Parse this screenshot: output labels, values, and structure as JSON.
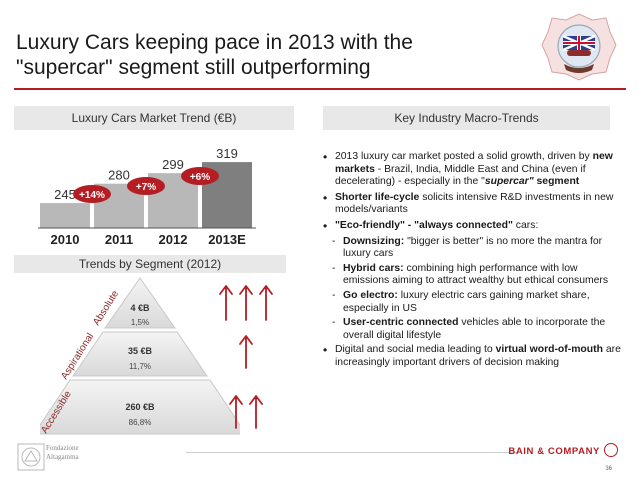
{
  "title_line1": "Luxury Cars keeping pace in 2013 with the",
  "title_line2": "\"supercar\" segment still outperforming",
  "left_header": "Luxury Cars Market Trend (€B)",
  "right_header": "Key Industry Macro-Trends",
  "segment_header": "Trends by Segment (2012)",
  "chart_data": {
    "type": "bar",
    "title": "Luxury Cars Market Trend (€B)",
    "categories": [
      "2010",
      "2011",
      "2012",
      "2013E"
    ],
    "values": [
      245,
      280,
      299,
      319
    ],
    "value_labels": [
      "245",
      "280",
      "299",
      "319"
    ],
    "growth_labels": [
      "+14%",
      "+7%",
      "+6%"
    ],
    "colors": [
      "#b8b8b8",
      "#b8b8b8",
      "#b8b8b8",
      "#7f7f7f"
    ],
    "accent": "#b41e23",
    "ylim": [
      200,
      330
    ]
  },
  "pyramid": {
    "levels": [
      {
        "value": "4 €B",
        "share": "1,5%"
      },
      {
        "value": "35 €B",
        "share": "11,7%"
      },
      {
        "value": "260 €B",
        "share": "86,8%"
      }
    ],
    "side_labels": [
      "Absolute",
      "Aspirational",
      "Accessible"
    ]
  },
  "bullets": {
    "b1": "2013 luxury car market posted a solid growth, driven by ",
    "b1_bold": "new markets",
    "b1_rest": " - Brazil, India, Middle East and China (even if decelerating) - especially in the \"",
    "b1_italic": "supercar\"",
    "b1_end": " segment",
    "b2_bold": "Shorter life-cycle",
    "b2_rest": " solicits intensive R&D investments in new models/variants",
    "b3_bold": "\"Eco-friendly\" - \"always connected\"",
    "b3_rest": " cars:",
    "s1_bold": "Downsizing:",
    "s1_rest": " \"bigger is better\" is no more the mantra for luxury cars",
    "s2_bold": "Hybrid cars:",
    "s2_rest": " combining high performance with low emissions aiming to attract wealthy but ethical consumers",
    "s3_bold": "Go electro:",
    "s3_rest": " luxury electric cars gaining market share, especially in US",
    "s4_bold": "User-centric connected",
    "s4_rest": " vehicles able to incorporate the overall digital lifestyle",
    "b4": "Digital and social media leading to ",
    "b4_bold": "virtual word-of-mouth",
    "b4_rest": " are increasingly important drivers of decision making"
  },
  "footer": {
    "foundation_line1": "Fondazione",
    "foundation_line2": "Altagamma",
    "brand": "BAIN & COMPANY",
    "page": "36"
  }
}
